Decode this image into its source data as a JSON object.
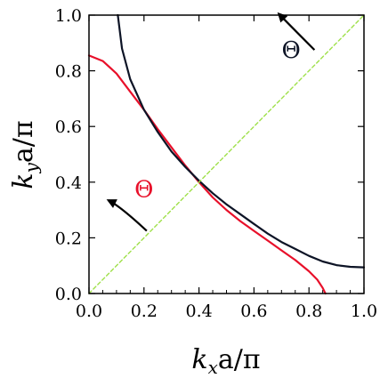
{
  "chart_data": {
    "type": "line",
    "title": "",
    "xlabel": {
      "main": "k",
      "sub": "x",
      "rest": "a/π"
    },
    "ylabel": {
      "main": "k",
      "sub": "y",
      "rest": "a/π"
    },
    "xlim": [
      0,
      1
    ],
    "ylim": [
      0,
      1
    ],
    "xticks": [
      "0.0",
      "0.2",
      "0.4",
      "0.6",
      "0.8",
      "1.0"
    ],
    "yticks": [
      "0.0",
      "0.2",
      "0.4",
      "0.6",
      "0.8",
      "1.0"
    ],
    "grid": false,
    "legend": "none",
    "series": [
      {
        "color": "#e8102a",
        "style": "solid",
        "x": [
          0.0,
          0.05,
          0.1,
          0.15,
          0.2,
          0.25,
          0.3,
          0.35,
          0.4,
          0.45,
          0.5,
          0.55,
          0.6,
          0.65,
          0.7,
          0.75,
          0.8,
          0.83,
          0.85,
          0.86
        ],
        "y": [
          0.855,
          0.835,
          0.79,
          0.725,
          0.66,
          0.59,
          0.525,
          0.46,
          0.4,
          0.345,
          0.3,
          0.26,
          0.225,
          0.19,
          0.155,
          0.12,
          0.08,
          0.05,
          0.02,
          0.0
        ]
      },
      {
        "color": "#0d1426",
        "style": "solid",
        "x": [
          0.105,
          0.12,
          0.15,
          0.2,
          0.25,
          0.3,
          0.35,
          0.4,
          0.45,
          0.5,
          0.55,
          0.6,
          0.65,
          0.7,
          0.75,
          0.8,
          0.85,
          0.9,
          0.95,
          1.0
        ],
        "y": [
          1.0,
          0.88,
          0.77,
          0.66,
          0.58,
          0.51,
          0.455,
          0.405,
          0.36,
          0.32,
          0.285,
          0.25,
          0.215,
          0.185,
          0.16,
          0.135,
          0.115,
          0.102,
          0.096,
          0.094
        ]
      },
      {
        "color": "#9fe04a",
        "style": "dashed",
        "x": [
          0,
          1
        ],
        "y": [
          0,
          1
        ]
      }
    ],
    "annotations": [
      {
        "text": "Θ",
        "color": "#e8102a",
        "x": 0.2,
        "y": 0.375
      },
      {
        "text": "Θ",
        "color": "#0d1426",
        "x": 0.735,
        "y": 0.875
      }
    ],
    "arrows": [
      {
        "color": "#000000",
        "from": [
          0.21,
          0.225
        ],
        "to": [
          0.07,
          0.335
        ]
      },
      {
        "color": "#000000",
        "from": [
          0.82,
          0.875
        ],
        "to": [
          0.69,
          1.005
        ]
      }
    ]
  }
}
